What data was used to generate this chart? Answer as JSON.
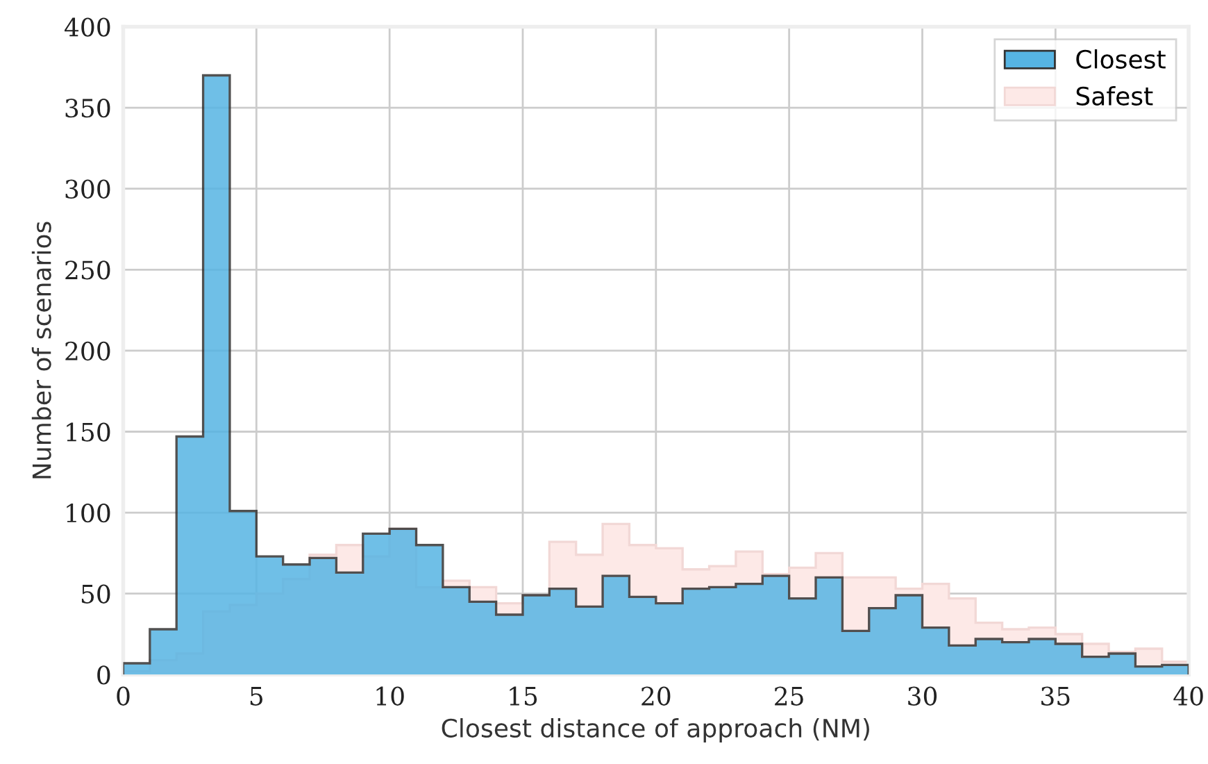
{
  "chart_data": {
    "type": "histogram",
    "xlabel": "Closest distance of approach (NM)",
    "ylabel": "Number of scenarios",
    "bins": [
      0,
      1,
      2,
      3,
      4,
      5,
      6,
      7,
      8,
      9,
      10,
      11,
      12,
      13,
      14,
      15,
      16,
      17,
      18,
      19,
      20,
      21,
      22,
      23,
      24,
      25,
      26,
      27,
      28,
      29,
      30,
      31,
      32,
      33,
      34,
      35,
      36,
      37,
      38,
      39,
      40
    ],
    "series": [
      {
        "name": "Closest",
        "color": "#56b4e3",
        "values": [
          7,
          28,
          147,
          370,
          101,
          73,
          68,
          72,
          63,
          87,
          90,
          80,
          54,
          45,
          37,
          49,
          53,
          42,
          61,
          48,
          44,
          53,
          54,
          56,
          61,
          47,
          60,
          27,
          41,
          49,
          29,
          18,
          22,
          20,
          22,
          19,
          11,
          13,
          5,
          6
        ]
      },
      {
        "name": "Safest",
        "color": "#fde9e7",
        "values": [
          2,
          9,
          13,
          39,
          43,
          50,
          59,
          74,
          80,
          73,
          90,
          54,
          58,
          54,
          44,
          49,
          82,
          74,
          93,
          80,
          78,
          65,
          67,
          76,
          62,
          66,
          75,
          60,
          60,
          53,
          56,
          47,
          32,
          28,
          29,
          25,
          19,
          14,
          16,
          8
        ]
      }
    ],
    "xlim": [
      0,
      40
    ],
    "xticks": [
      0,
      5,
      10,
      15,
      20,
      25,
      30,
      35,
      40
    ],
    "ylim": [
      0,
      400
    ],
    "yticks": [
      0,
      50,
      100,
      150,
      200,
      250,
      300,
      350,
      400
    ],
    "grid": true,
    "legend": "top right"
  }
}
